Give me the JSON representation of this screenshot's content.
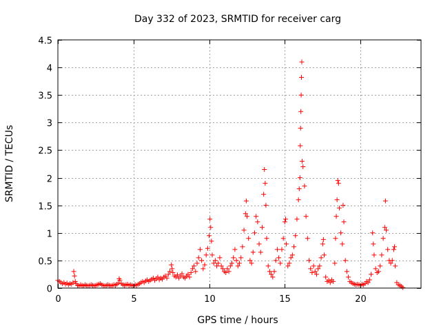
{
  "chart_data": {
    "type": "scatter",
    "title": "Day 332 of 2023, SRMTID for receiver carg",
    "xlabel": "GPS time / hours",
    "ylabel": "SRMTID / TECUs",
    "xlim": [
      0,
      24
    ],
    "ylim": [
      0,
      4.5
    ],
    "xticks": [
      0,
      5,
      10,
      15,
      20
    ],
    "xtick_labels": [
      "0",
      "5",
      "10",
      "15",
      "20"
    ],
    "yticks": [
      0,
      0.5,
      1,
      1.5,
      2,
      2.5,
      3,
      3.5,
      4,
      4.5
    ],
    "ytick_labels": [
      "0",
      "0.5",
      "1",
      "1.5",
      "2",
      "2.5",
      "3",
      "3.5",
      "4",
      "4.5"
    ],
    "grid": true,
    "marker": "+",
    "color": "#ff0000",
    "series": [
      {
        "name": "SRMTID",
        "points": [
          [
            0.0,
            0.14
          ],
          [
            0.1,
            0.12
          ],
          [
            0.2,
            0.1
          ],
          [
            0.3,
            0.08
          ],
          [
            0.4,
            0.1
          ],
          [
            0.5,
            0.07
          ],
          [
            0.6,
            0.09
          ],
          [
            0.7,
            0.06
          ],
          [
            0.8,
            0.08
          ],
          [
            0.9,
            0.07
          ],
          [
            1.0,
            0.1
          ],
          [
            1.05,
            0.3
          ],
          [
            1.1,
            0.22
          ],
          [
            1.15,
            0.12
          ],
          [
            1.2,
            0.08
          ],
          [
            1.3,
            0.05
          ],
          [
            1.4,
            0.04
          ],
          [
            1.5,
            0.06
          ],
          [
            1.6,
            0.05
          ],
          [
            1.7,
            0.04
          ],
          [
            1.8,
            0.06
          ],
          [
            1.9,
            0.05
          ],
          [
            2.0,
            0.04
          ],
          [
            2.1,
            0.05
          ],
          [
            2.2,
            0.06
          ],
          [
            2.3,
            0.05
          ],
          [
            2.4,
            0.04
          ],
          [
            2.5,
            0.05
          ],
          [
            2.6,
            0.06
          ],
          [
            2.7,
            0.07
          ],
          [
            2.8,
            0.08
          ],
          [
            2.9,
            0.06
          ],
          [
            3.0,
            0.05
          ],
          [
            3.1,
            0.04
          ],
          [
            3.2,
            0.05
          ],
          [
            3.3,
            0.06
          ],
          [
            3.4,
            0.05
          ],
          [
            3.5,
            0.04
          ],
          [
            3.6,
            0.05
          ],
          [
            3.7,
            0.06
          ],
          [
            3.8,
            0.05
          ],
          [
            3.9,
            0.07
          ],
          [
            4.0,
            0.09
          ],
          [
            4.05,
            0.17
          ],
          [
            4.1,
            0.14
          ],
          [
            4.2,
            0.08
          ],
          [
            4.3,
            0.06
          ],
          [
            4.4,
            0.05
          ],
          [
            4.5,
            0.06
          ],
          [
            4.6,
            0.07
          ],
          [
            4.7,
            0.05
          ],
          [
            4.8,
            0.06
          ],
          [
            4.9,
            0.05
          ],
          [
            5.0,
            0.04
          ],
          [
            5.1,
            0.06
          ],
          [
            5.2,
            0.05
          ],
          [
            5.3,
            0.07
          ],
          [
            5.4,
            0.08
          ],
          [
            5.5,
            0.1
          ],
          [
            5.6,
            0.12
          ],
          [
            5.7,
            0.1
          ],
          [
            5.8,
            0.13
          ],
          [
            5.9,
            0.15
          ],
          [
            6.0,
            0.12
          ],
          [
            6.1,
            0.14
          ],
          [
            6.2,
            0.16
          ],
          [
            6.3,
            0.18
          ],
          [
            6.4,
            0.14
          ],
          [
            6.5,
            0.17
          ],
          [
            6.6,
            0.2
          ],
          [
            6.7,
            0.15
          ],
          [
            6.8,
            0.18
          ],
          [
            6.9,
            0.16
          ],
          [
            7.0,
            0.2
          ],
          [
            7.1,
            0.22
          ],
          [
            7.2,
            0.18
          ],
          [
            7.3,
            0.25
          ],
          [
            7.4,
            0.3
          ],
          [
            7.5,
            0.42
          ],
          [
            7.55,
            0.35
          ],
          [
            7.6,
            0.28
          ],
          [
            7.7,
            0.22
          ],
          [
            7.8,
            0.2
          ],
          [
            7.9,
            0.24
          ],
          [
            8.0,
            0.18
          ],
          [
            8.1,
            0.22
          ],
          [
            8.2,
            0.26
          ],
          [
            8.3,
            0.2
          ],
          [
            8.4,
            0.18
          ],
          [
            8.5,
            0.22
          ],
          [
            8.6,
            0.25
          ],
          [
            8.7,
            0.2
          ],
          [
            8.8,
            0.28
          ],
          [
            8.9,
            0.35
          ],
          [
            9.0,
            0.4
          ],
          [
            9.1,
            0.3
          ],
          [
            9.2,
            0.45
          ],
          [
            9.3,
            0.55
          ],
          [
            9.4,
            0.7
          ],
          [
            9.5,
            0.5
          ],
          [
            9.6,
            0.35
          ],
          [
            9.7,
            0.42
          ],
          [
            9.8,
            0.6
          ],
          [
            9.9,
            0.72
          ],
          [
            10.0,
            0.95
          ],
          [
            10.05,
            1.25
          ],
          [
            10.1,
            1.1
          ],
          [
            10.15,
            0.85
          ],
          [
            10.2,
            0.6
          ],
          [
            10.3,
            0.45
          ],
          [
            10.4,
            0.5
          ],
          [
            10.5,
            0.4
          ],
          [
            10.6,
            0.45
          ],
          [
            10.7,
            0.55
          ],
          [
            10.8,
            0.4
          ],
          [
            10.9,
            0.35
          ],
          [
            11.0,
            0.3
          ],
          [
            11.1,
            0.28
          ],
          [
            11.2,
            0.35
          ],
          [
            11.3,
            0.3
          ],
          [
            11.4,
            0.4
          ],
          [
            11.5,
            0.45
          ],
          [
            11.6,
            0.55
          ],
          [
            11.7,
            0.7
          ],
          [
            11.8,
            0.5
          ],
          [
            11.9,
            0.4
          ],
          [
            12.0,
            0.45
          ],
          [
            12.1,
            0.55
          ],
          [
            12.2,
            0.75
          ],
          [
            12.3,
            1.05
          ],
          [
            12.4,
            1.35
          ],
          [
            12.45,
            1.58
          ],
          [
            12.5,
            1.3
          ],
          [
            12.6,
            0.9
          ],
          [
            12.7,
            0.5
          ],
          [
            12.8,
            0.45
          ],
          [
            12.9,
            0.65
          ],
          [
            13.0,
            1.0
          ],
          [
            13.1,
            1.3
          ],
          [
            13.2,
            1.2
          ],
          [
            13.3,
            0.8
          ],
          [
            13.4,
            0.65
          ],
          [
            13.5,
            1.1
          ],
          [
            13.6,
            1.7
          ],
          [
            13.65,
            2.15
          ],
          [
            13.7,
            1.9
          ],
          [
            13.75,
            1.5
          ],
          [
            13.8,
            0.9
          ],
          [
            13.9,
            0.4
          ],
          [
            14.0,
            0.3
          ],
          [
            14.1,
            0.25
          ],
          [
            14.2,
            0.2
          ],
          [
            14.3,
            0.3
          ],
          [
            14.4,
            0.5
          ],
          [
            14.5,
            0.7
          ],
          [
            14.6,
            0.55
          ],
          [
            14.7,
            0.45
          ],
          [
            14.8,
            0.7
          ],
          [
            14.9,
            0.9
          ],
          [
            15.0,
            1.2
          ],
          [
            15.05,
            1.25
          ],
          [
            15.1,
            0.8
          ],
          [
            15.2,
            0.4
          ],
          [
            15.3,
            0.45
          ],
          [
            15.4,
            0.55
          ],
          [
            15.5,
            0.6
          ],
          [
            15.6,
            0.75
          ],
          [
            15.7,
            0.95
          ],
          [
            15.8,
            1.25
          ],
          [
            15.9,
            1.6
          ],
          [
            15.95,
            1.8
          ],
          [
            16.0,
            2.0
          ],
          [
            16.02,
            2.58
          ],
          [
            16.04,
            2.9
          ],
          [
            16.06,
            3.2
          ],
          [
            16.08,
            3.5
          ],
          [
            16.1,
            3.82
          ],
          [
            16.12,
            4.1
          ],
          [
            16.14,
            2.3
          ],
          [
            16.2,
            2.2
          ],
          [
            16.3,
            1.85
          ],
          [
            16.4,
            1.3
          ],
          [
            16.5,
            0.9
          ],
          [
            16.6,
            0.5
          ],
          [
            16.7,
            0.35
          ],
          [
            16.8,
            0.28
          ],
          [
            16.9,
            0.4
          ],
          [
            17.0,
            0.3
          ],
          [
            17.1,
            0.25
          ],
          [
            17.2,
            0.35
          ],
          [
            17.3,
            0.4
          ],
          [
            17.4,
            0.55
          ],
          [
            17.5,
            0.8
          ],
          [
            17.55,
            0.88
          ],
          [
            17.6,
            0.6
          ],
          [
            17.7,
            0.2
          ],
          [
            17.8,
            0.12
          ],
          [
            17.9,
            0.14
          ],
          [
            18.0,
            0.1
          ],
          [
            18.1,
            0.15
          ],
          [
            18.2,
            0.12
          ],
          [
            18.3,
            0.45
          ],
          [
            18.35,
            0.9
          ],
          [
            18.4,
            1.3
          ],
          [
            18.45,
            1.6
          ],
          [
            18.5,
            1.95
          ],
          [
            18.55,
            1.9
          ],
          [
            18.6,
            1.45
          ],
          [
            18.7,
            1.0
          ],
          [
            18.8,
            0.8
          ],
          [
            18.85,
            1.5
          ],
          [
            18.9,
            1.2
          ],
          [
            19.0,
            0.5
          ],
          [
            19.1,
            0.3
          ],
          [
            19.2,
            0.2
          ],
          [
            19.3,
            0.12
          ],
          [
            19.4,
            0.1
          ],
          [
            19.5,
            0.08
          ],
          [
            19.6,
            0.07
          ],
          [
            19.7,
            0.06
          ],
          [
            19.8,
            0.07
          ],
          [
            19.9,
            0.06
          ],
          [
            20.0,
            0.05
          ],
          [
            20.1,
            0.07
          ],
          [
            20.2,
            0.06
          ],
          [
            20.3,
            0.08
          ],
          [
            20.4,
            0.12
          ],
          [
            20.5,
            0.1
          ],
          [
            20.6,
            0.15
          ],
          [
            20.7,
            0.25
          ],
          [
            20.8,
            1.0
          ],
          [
            20.85,
            0.8
          ],
          [
            20.9,
            0.6
          ],
          [
            21.0,
            0.35
          ],
          [
            21.1,
            0.28
          ],
          [
            21.2,
            0.3
          ],
          [
            21.3,
            0.4
          ],
          [
            21.4,
            0.6
          ],
          [
            21.5,
            0.9
          ],
          [
            21.6,
            1.1
          ],
          [
            21.65,
            1.58
          ],
          [
            21.7,
            1.05
          ],
          [
            21.8,
            0.7
          ],
          [
            21.9,
            0.5
          ],
          [
            22.0,
            0.45
          ],
          [
            22.1,
            0.5
          ],
          [
            22.2,
            0.7
          ],
          [
            22.25,
            0.75
          ],
          [
            22.3,
            0.4
          ],
          [
            22.4,
            0.1
          ],
          [
            22.5,
            0.06
          ],
          [
            22.6,
            0.05
          ],
          [
            22.7,
            0.03
          ],
          [
            22.8,
            0.01
          ]
        ]
      }
    ]
  }
}
